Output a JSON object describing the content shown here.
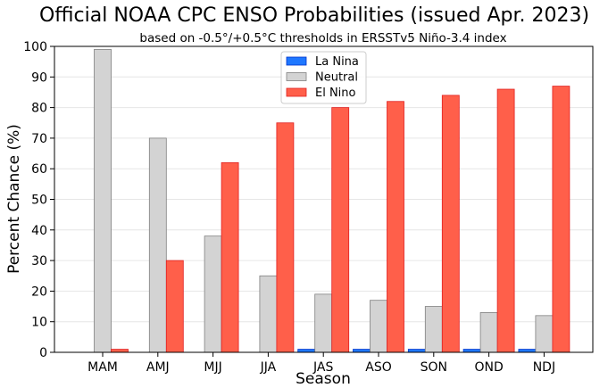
{
  "chart_data": {
    "type": "bar",
    "title": "Official NOAA CPC ENSO Probabilities (issued Apr. 2023)",
    "subtitle": "based on -0.5°/+0.5°C thresholds in ERSSTv5 Niño-3.4 index",
    "xlabel": "Season",
    "ylabel": "Percent Chance (%)",
    "ylim": [
      0,
      100
    ],
    "yticks": [
      0,
      10,
      20,
      30,
      40,
      50,
      60,
      70,
      80,
      90,
      100
    ],
    "categories": [
      "MAM",
      "AMJ",
      "MJJ",
      "JJA",
      "JAS",
      "ASO",
      "SON",
      "OND",
      "NDJ"
    ],
    "grid": true,
    "legend_position": "top-center",
    "series": [
      {
        "name": "La Nina",
        "color": "#1f77ff",
        "edge": "#0033cc",
        "values": [
          0,
          0,
          0,
          0,
          1,
          1,
          1,
          1,
          1
        ]
      },
      {
        "name": "Neutral",
        "color": "#d3d3d3",
        "edge": "#808080",
        "values": [
          99,
          70,
          38,
          25,
          19,
          17,
          15,
          13,
          12
        ]
      },
      {
        "name": "El Nino",
        "color": "#ff5f4a",
        "edge": "#e02020",
        "values": [
          1,
          30,
          62,
          75,
          80,
          82,
          84,
          86,
          87
        ]
      }
    ]
  }
}
